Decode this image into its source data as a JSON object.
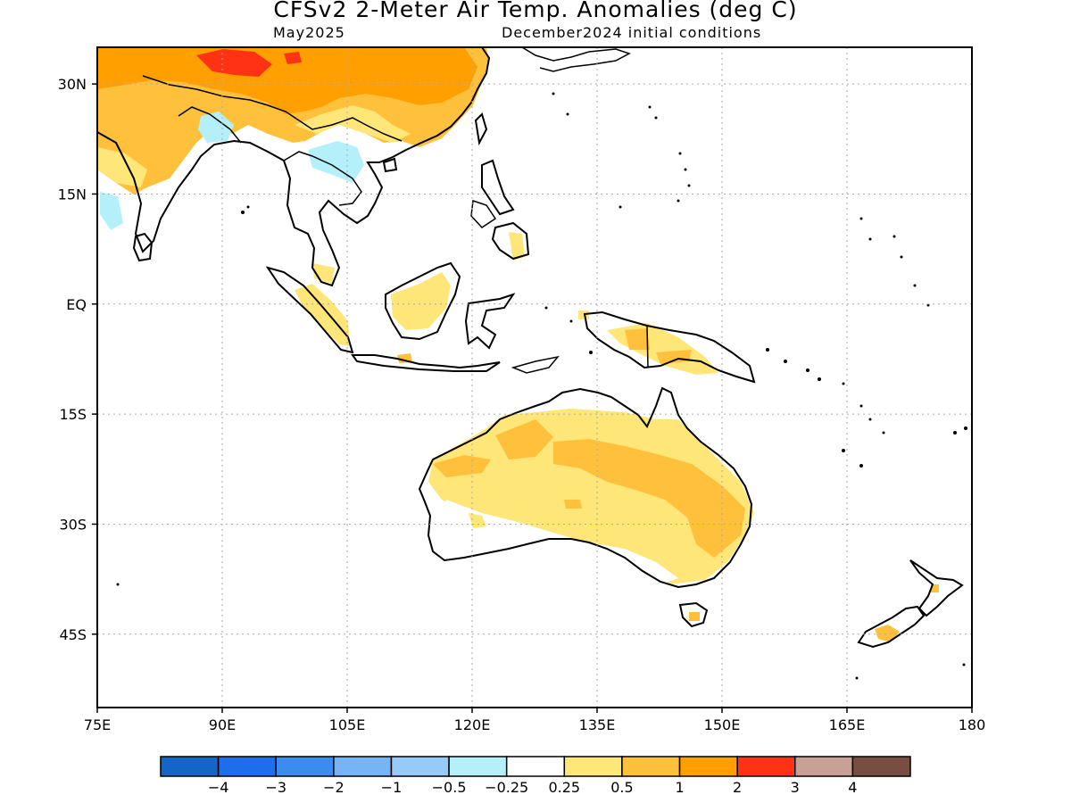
{
  "header": {
    "title": "CFSv2 2-Meter Air Temp. Anomalies (deg C)",
    "valid_month": "May2025",
    "initial_conditions": "December2024 initial conditions"
  },
  "map": {
    "lon_range": [
      75,
      180
    ],
    "lat_range": [
      -55,
      35
    ],
    "lon_ticks": [
      {
        "value": 75,
        "label": "75E"
      },
      {
        "value": 90,
        "label": "90E"
      },
      {
        "value": 105,
        "label": "105E"
      },
      {
        "value": 120,
        "label": "120E"
      },
      {
        "value": 135,
        "label": "135E"
      },
      {
        "value": 150,
        "label": "150E"
      },
      {
        "value": 165,
        "label": "165E"
      },
      {
        "value": 180,
        "label": "180"
      }
    ],
    "lat_ticks": [
      {
        "value": 30,
        "label": "30N"
      },
      {
        "value": 15,
        "label": "15N"
      },
      {
        "value": 0,
        "label": "EQ"
      },
      {
        "value": -15,
        "label": "15S"
      },
      {
        "value": -30,
        "label": "30S"
      },
      {
        "value": -45,
        "label": "45S"
      }
    ],
    "grid": "dotted"
  },
  "colorbar": {
    "colors": [
      "#1565C8",
      "#1E6EEB",
      "#3C8CF0",
      "#78B4F5",
      "#96CAF7",
      "#B4F0FA",
      "#FFFFFF",
      "#FFE678",
      "#FFC03C",
      "#FFA000",
      "#FF3214",
      "#C8A096",
      "#784E42"
    ],
    "labels": [
      "−4",
      "−3",
      "−2",
      "−1",
      "−0.5",
      "−0.25",
      "0.25",
      "0.5",
      "1",
      "2",
      "3",
      "4"
    ]
  }
}
